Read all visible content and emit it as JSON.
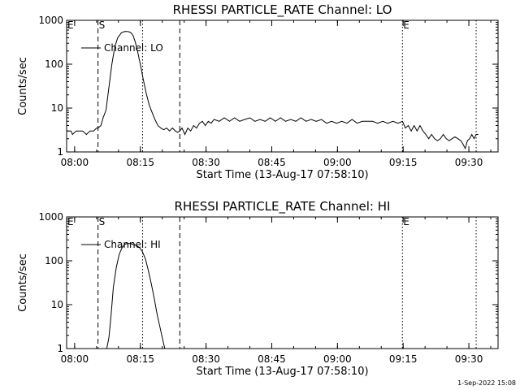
{
  "footer_date": "1-Sep-2022 15:08",
  "chart_data": [
    {
      "type": "line",
      "title": "RHESSI PARTICLE_RATE Channel: LO",
      "xlabel": "Start Time (13-Aug-17 07:58:10)",
      "ylabel": "Counts/sec",
      "y_scale": "log",
      "ylim": [
        1,
        1000
      ],
      "xlim": [
        "07:58:10",
        "09:36:40"
      ],
      "x_ticks": [
        "08:00",
        "08:15",
        "08:30",
        "08:45",
        "09:00",
        "09:15",
        "09:30"
      ],
      "y_ticks": [
        "1",
        "10",
        "100",
        "1000"
      ],
      "legend": "Channel: LO",
      "legend_position": "top-left",
      "markers": [
        {
          "label": "S",
          "time": "08:05:20",
          "style": "dashed"
        },
        {
          "label": "",
          "time": "08:24:00",
          "style": "dashed"
        },
        {
          "label": "",
          "time": "08:15:30",
          "style": "dotted"
        },
        {
          "label": "E",
          "time": "09:14:50",
          "style": "dotted"
        },
        {
          "label": "",
          "time": "09:31:40",
          "style": "dotted"
        }
      ],
      "corner_label": "E",
      "series": [
        {
          "x": [
            "07:58:20",
            "07:59:10",
            "07:59:30",
            "08:00:20",
            "08:01:10",
            "08:01:50",
            "08:02:40",
            "08:03:30",
            "08:04:20",
            "08:05:00",
            "08:05:20",
            "08:06:00",
            "08:06:30",
            "08:07:10",
            "08:07:50",
            "08:08:30",
            "08:09:10",
            "08:09:50",
            "08:10:40",
            "08:11:30",
            "08:12:20",
            "08:12:50",
            "08:13:20",
            "08:13:50",
            "08:14:20",
            "08:15:00",
            "08:15:40",
            "08:16:20",
            "08:17:00",
            "08:17:40",
            "08:18:20",
            "08:19:00",
            "08:19:40",
            "08:20:20",
            "08:21:00",
            "08:21:40",
            "08:22:20",
            "08:23:00",
            "08:23:30",
            "08:24:00",
            "08:24:30",
            "08:25:10",
            "08:25:50",
            "08:26:30",
            "08:27:10",
            "08:27:50",
            "08:28:30",
            "08:29:10",
            "08:29:50",
            "08:30:30",
            "08:31:10",
            "08:31:50",
            "08:33:00",
            "08:34:10",
            "08:35:20",
            "08:36:30",
            "08:37:40",
            "08:38:50",
            "08:40:00",
            "08:41:10",
            "08:42:20",
            "08:43:30",
            "08:44:40",
            "08:45:50",
            "08:47:00",
            "08:48:10",
            "08:49:20",
            "08:50:30",
            "08:51:40",
            "08:52:50",
            "08:54:00",
            "08:55:10",
            "08:56:20",
            "08:57:30",
            "08:58:40",
            "08:59:50",
            "09:01:00",
            "09:02:10",
            "09:03:20",
            "09:04:30",
            "09:05:40",
            "09:06:50",
            "09:08:00",
            "09:09:10",
            "09:10:20",
            "09:11:30",
            "09:12:40",
            "09:13:50",
            "09:14:50",
            "09:15:30",
            "09:16:10",
            "09:16:50",
            "09:17:30",
            "09:18:10",
            "09:18:50",
            "09:19:30",
            "09:20:10",
            "09:20:50",
            "09:21:30",
            "09:22:10",
            "09:22:50",
            "09:23:30",
            "09:24:10",
            "09:24:50",
            "09:25:30",
            "09:26:10",
            "09:26:50",
            "09:27:30",
            "09:28:10",
            "09:28:40",
            "09:29:10",
            "09:29:40",
            "09:30:10",
            "09:30:40",
            "09:31:10",
            "09:31:40",
            "09:32:10"
          ],
          "y": [
            3,
            3,
            2.5,
            3,
            3,
            3,
            2.5,
            3,
            3,
            3.5,
            3.5,
            4,
            6,
            9,
            30,
            100,
            250,
            400,
            520,
            560,
            550,
            520,
            450,
            320,
            200,
            100,
            45,
            22,
            12,
            8,
            5.5,
            4,
            3.5,
            3.2,
            3.5,
            3,
            3.5,
            3,
            2.8,
            3,
            3.5,
            2.5,
            3.5,
            3,
            4,
            3.5,
            4.5,
            5,
            4,
            5,
            4.5,
            5.5,
            5,
            6,
            5,
            6,
            5,
            5.5,
            6,
            5,
            5.5,
            5,
            6,
            5,
            6,
            5,
            5.5,
            5,
            6,
            5,
            5.5,
            5,
            5.5,
            4.5,
            5,
            4.5,
            5,
            4.5,
            5.5,
            4.5,
            5,
            5,
            5,
            4.5,
            5,
            4.5,
            5,
            4.5,
            5,
            3.5,
            4,
            3,
            4,
            3,
            4,
            3,
            2.5,
            2,
            2.5,
            2,
            1.8,
            2,
            2.5,
            2,
            1.8,
            2,
            2.2,
            2,
            1.8,
            1.5,
            1.2,
            1.8,
            2,
            2.5,
            2,
            2.5,
            2.5
          ]
        }
      ]
    },
    {
      "type": "line",
      "title": "RHESSI PARTICLE_RATE Channel: HI",
      "xlabel": "Start Time (13-Aug-17 07:58:10)",
      "ylabel": "Counts/sec",
      "y_scale": "log",
      "ylim": [
        1,
        1000
      ],
      "xlim": [
        "07:58:10",
        "09:36:40"
      ],
      "x_ticks": [
        "08:00",
        "08:15",
        "08:30",
        "08:45",
        "09:00",
        "09:15",
        "09:30"
      ],
      "y_ticks": [
        "1",
        "10",
        "100",
        "1000"
      ],
      "legend": "Channel: HI",
      "legend_position": "top-left",
      "markers": [
        {
          "label": "S",
          "time": "08:05:20",
          "style": "dashed"
        },
        {
          "label": "",
          "time": "08:24:00",
          "style": "dashed"
        },
        {
          "label": "",
          "time": "08:15:30",
          "style": "dotted"
        },
        {
          "label": "E",
          "time": "09:14:50",
          "style": "dotted"
        },
        {
          "label": "",
          "time": "09:31:40",
          "style": "dotted"
        }
      ],
      "corner_label": "E",
      "series": [
        {
          "x": [
            "08:07:20",
            "08:07:50",
            "08:08:20",
            "08:08:50",
            "08:09:30",
            "08:10:10",
            "08:10:50",
            "08:11:30",
            "08:12:10",
            "08:12:50",
            "08:13:30",
            "08:14:10",
            "08:14:50",
            "08:15:30",
            "08:16:10",
            "08:16:50",
            "08:17:30",
            "08:18:10",
            "08:18:50",
            "08:19:30",
            "08:20:10",
            "08:20:35"
          ],
          "y": [
            1,
            1.8,
            6,
            25,
            70,
            140,
            200,
            240,
            250,
            245,
            235,
            220,
            200,
            160,
            110,
            60,
            30,
            14,
            6,
            3,
            1.5,
            1
          ]
        }
      ]
    }
  ]
}
